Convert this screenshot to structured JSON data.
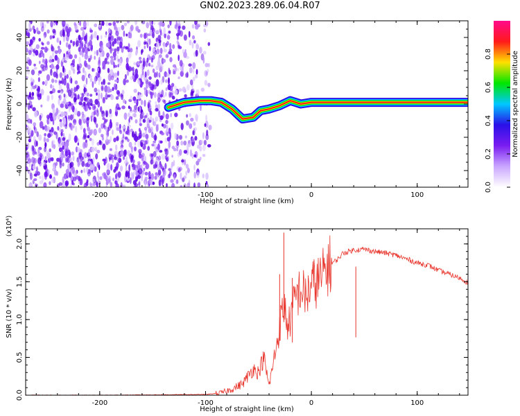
{
  "title": "GN02.2023.289.06.04.R07",
  "colors": {
    "snr_line": "#e8332a",
    "colormap": [
      "#ffffff",
      "#c9a6ff",
      "#7a1cf0",
      "#2a10e8",
      "#00c8ff",
      "#00e600",
      "#ffe000",
      "#ff1a1a",
      "#ff0a8c"
    ]
  },
  "chart_data": [
    {
      "type": "heatmap",
      "xlabel": "Height of straight line (km)",
      "ylabel": "Frequency (Hz)",
      "xlim": [
        -270,
        148
      ],
      "ylim": [
        -50,
        50
      ],
      "xticks": [
        -200,
        -100,
        0,
        100
      ],
      "yticks": [
        -40,
        -20,
        0,
        20,
        40
      ],
      "colorbar": {
        "label": "Normalized spectral amplitude",
        "range": [
          0.0,
          1.0
        ],
        "ticks": [
          0.0,
          0.2,
          0.4,
          0.6,
          0.8
        ]
      },
      "signal_track": {
        "x": [
          -135,
          -120,
          -105,
          -95,
          -85,
          -75,
          -65,
          -55,
          -48,
          -40,
          -30,
          -20,
          -15,
          -10,
          0,
          20,
          50,
          80,
          100,
          148
        ],
        "y": [
          -2,
          1,
          2,
          2,
          1,
          -3,
          -9,
          -8,
          -4,
          -3,
          -1,
          2,
          1,
          0,
          1,
          1,
          1,
          1,
          1,
          1
        ]
      }
    },
    {
      "type": "line",
      "xlabel": "Height of straight line (km)",
      "ylabel": "SNR (10 * v/v)",
      "y_multiplier": "(x10⁴)",
      "xlim": [
        -270,
        148
      ],
      "ylim": [
        0,
        2.2
      ],
      "xticks": [
        -200,
        -100,
        0,
        100
      ],
      "yticks": [
        "0.0",
        "0.5",
        "1.0",
        "1.5",
        "2.0"
      ],
      "series": [
        {
          "x": [
            -270,
            -200,
            -100,
            -85,
            -75,
            -65,
            -60,
            -55,
            -50,
            -45,
            -40,
            -35,
            -30,
            -26,
            -22,
            -18,
            -15,
            -10,
            -5,
            0,
            5,
            10,
            15,
            20,
            25,
            30,
            40,
            50,
            60,
            70,
            80,
            90,
            100,
            110,
            120,
            130,
            140,
            148
          ],
          "y": [
            0.0,
            0.0,
            0.01,
            0.03,
            0.08,
            0.15,
            0.25,
            0.35,
            0.3,
            0.5,
            0.12,
            0.5,
            0.9,
            1.2,
            0.9,
            1.1,
            1.3,
            1.4,
            1.3,
            1.45,
            1.5,
            1.55,
            1.7,
            1.75,
            1.8,
            1.88,
            1.92,
            1.93,
            1.9,
            1.88,
            1.85,
            1.8,
            1.75,
            1.72,
            1.65,
            1.6,
            1.55,
            1.49
          ]
        }
      ],
      "spikes": [
        {
          "x": -26,
          "y": 2.15
        },
        {
          "x": -30,
          "y": 1.6
        },
        {
          "x": -18,
          "y": 1.55
        },
        {
          "x": 42,
          "y": 1.7
        }
      ]
    }
  ]
}
